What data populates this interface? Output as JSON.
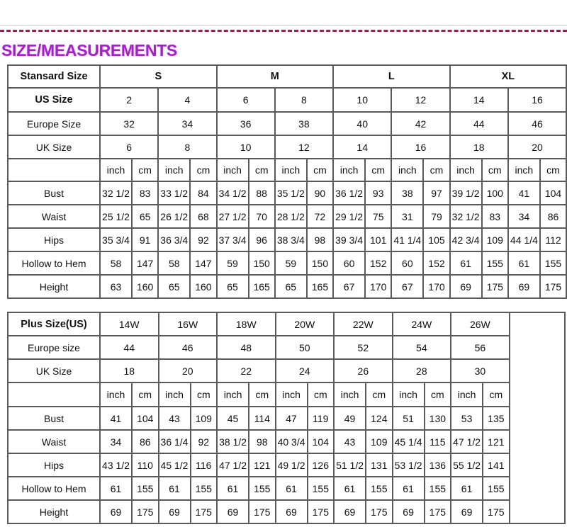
{
  "title": "SIZE/MEASUREMENTS",
  "colors": {
    "title": "#a322c4",
    "dashed_rule": "#8a2a55",
    "grid": "#5a5a5a"
  },
  "standard": {
    "header_label": "Stansard Size",
    "groups": [
      "S",
      "M",
      "L",
      "XL"
    ],
    "us_label": "US Size",
    "us_sizes": [
      "2",
      "4",
      "6",
      "8",
      "10",
      "12",
      "14",
      "16"
    ],
    "europe_label": "Europe Size",
    "europe_sizes": [
      "32",
      "34",
      "36",
      "38",
      "40",
      "42",
      "44",
      "46"
    ],
    "uk_label": "UK Size",
    "uk_sizes": [
      "6",
      "8",
      "10",
      "12",
      "14",
      "16",
      "18",
      "20"
    ],
    "units": [
      "inch",
      "cm"
    ],
    "rows": [
      {
        "label": "Bust",
        "values": [
          "32 1/2",
          "83",
          "33 1/2",
          "84",
          "34 1/2",
          "88",
          "35 1/2",
          "90",
          "36 1/2",
          "93",
          "38",
          "97",
          "39 1/2",
          "100",
          "41",
          "104"
        ]
      },
      {
        "label": "Waist",
        "values": [
          "25 1/2",
          "65",
          "26 1/2",
          "68",
          "27 1/2",
          "70",
          "28 1/2",
          "72",
          "29 1/2",
          "75",
          "31",
          "79",
          "32 1/2",
          "83",
          "34",
          "86"
        ]
      },
      {
        "label": "Hips",
        "values": [
          "35 3/4",
          "91",
          "36 3/4",
          "92",
          "37 3/4",
          "96",
          "38 3/4",
          "98",
          "39 3/4",
          "101",
          "41 1/4",
          "105",
          "42 3/4",
          "109",
          "44 1/4",
          "112"
        ]
      },
      {
        "label": "Hollow to Hem",
        "values": [
          "58",
          "147",
          "58",
          "147",
          "59",
          "150",
          "59",
          "150",
          "60",
          "152",
          "60",
          "152",
          "61",
          "155",
          "61",
          "155"
        ]
      },
      {
        "label": "Height",
        "values": [
          "63",
          "160",
          "65",
          "160",
          "65",
          "165",
          "65",
          "165",
          "67",
          "170",
          "67",
          "170",
          "69",
          "175",
          "69",
          "175"
        ]
      }
    ]
  },
  "plus": {
    "header_label": "Plus Size(US)",
    "us_sizes": [
      "14W",
      "16W",
      "18W",
      "20W",
      "22W",
      "24W",
      "26W"
    ],
    "europe_label": "Europe size",
    "europe_sizes": [
      "44",
      "46",
      "48",
      "50",
      "52",
      "54",
      "56"
    ],
    "uk_label": "UK Size",
    "uk_sizes": [
      "18",
      "20",
      "22",
      "24",
      "26",
      "28",
      "30"
    ],
    "units": [
      "inch",
      "cm"
    ],
    "rows": [
      {
        "label": "Bust",
        "values": [
          "41",
          "104",
          "43",
          "109",
          "45",
          "114",
          "47",
          "119",
          "49",
          "124",
          "51",
          "130",
          "53",
          "135"
        ]
      },
      {
        "label": "Waist",
        "values": [
          "34",
          "86",
          "36 1/4",
          "92",
          "38 1/2",
          "98",
          "40 3/4",
          "104",
          "43",
          "109",
          "45 1/4",
          "115",
          "47 1/2",
          "121"
        ]
      },
      {
        "label": "Hips",
        "values": [
          "43 1/2",
          "110",
          "45 1/2",
          "116",
          "47 1/2",
          "121",
          "49 1/2",
          "126",
          "51 1/2",
          "131",
          "53 1/2",
          "136",
          "55 1/2",
          "141"
        ]
      },
      {
        "label": "Hollow to Hem",
        "values": [
          "61",
          "155",
          "61",
          "155",
          "61",
          "155",
          "61",
          "155",
          "61",
          "155",
          "61",
          "155",
          "61",
          "155"
        ]
      },
      {
        "label": "Height",
        "values": [
          "69",
          "175",
          "69",
          "175",
          "69",
          "175",
          "69",
          "175",
          "69",
          "175",
          "69",
          "175",
          "69",
          "175"
        ]
      }
    ]
  }
}
